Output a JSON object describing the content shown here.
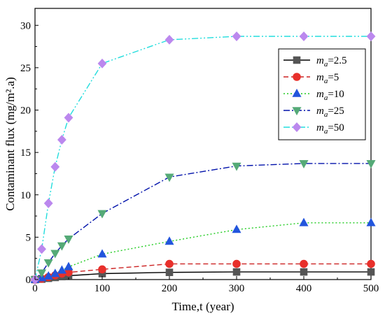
{
  "chart_data": {
    "type": "line",
    "title": "",
    "xlabel": "Time,t (year)",
    "ylabel": "Contaminant flux (mg/m².a)",
    "xlim": [
      0,
      500
    ],
    "ylim": [
      0,
      32
    ],
    "xticks": [
      0,
      100,
      200,
      300,
      400,
      500
    ],
    "yticks": [
      0,
      5,
      10,
      15,
      20,
      25,
      30
    ],
    "grid": false,
    "legend_position": "top-right",
    "x": [
      0,
      10,
      20,
      30,
      40,
      50,
      100,
      200,
      300,
      400,
      500
    ],
    "series": [
      {
        "legend_var": "m",
        "legend_sub": "a",
        "legend_value": "=2.5",
        "marker": "square",
        "color": "#555555",
        "line_color": "#000000",
        "dash": "none",
        "values": [
          0,
          0.05,
          0.15,
          0.25,
          0.35,
          0.45,
          0.7,
          0.85,
          0.9,
          0.9,
          0.9
        ]
      },
      {
        "legend_var": "m",
        "legend_sub": "a",
        "legend_value": "=5",
        "marker": "circle",
        "color": "#e8302b",
        "line_color": "#cc2222",
        "dash": "7,4",
        "values": [
          0,
          0.1,
          0.3,
          0.5,
          0.7,
          0.85,
          1.2,
          1.85,
          1.85,
          1.85,
          1.85
        ]
      },
      {
        "legend_var": "m",
        "legend_sub": "a",
        "legend_value": "=10",
        "marker": "triangle-up",
        "color": "#2255dd",
        "line_color": "#22cc22",
        "dash": "2,3",
        "values": [
          0,
          0.2,
          0.4,
          0.7,
          1.1,
          1.5,
          3.0,
          4.5,
          5.9,
          6.7,
          6.7
        ]
      },
      {
        "legend_var": "m",
        "legend_sub": "a",
        "legend_value": "=25",
        "marker": "triangle-down",
        "color": "#55aa77",
        "line_color": "#0011aa",
        "dash": "9,3,2,3",
        "values": [
          0,
          0.8,
          2.0,
          3.1,
          4.0,
          4.8,
          7.8,
          12.1,
          13.4,
          13.7,
          13.7
        ]
      },
      {
        "legend_var": "m",
        "legend_sub": "a",
        "legend_value": "=50",
        "marker": "diamond",
        "color": "#bb88ee",
        "line_color": "#22dddd",
        "dash": "9,3,2,3,2,3",
        "values": [
          0,
          3.6,
          9.0,
          13.3,
          16.5,
          19.1,
          25.5,
          28.3,
          28.7,
          28.7,
          28.7
        ]
      }
    ]
  }
}
